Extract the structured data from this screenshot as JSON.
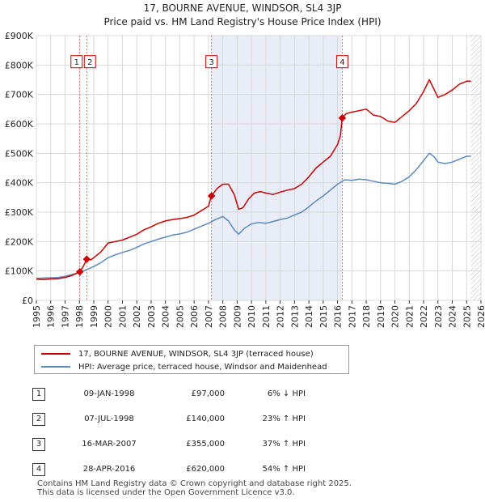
{
  "chart_data": {
    "type": "line",
    "title": "17, BOURNE AVENUE, WINDSOR, SL4 3JP",
    "subtitle": "Price paid vs. HM Land Registry's House Price Index (HPI)",
    "x_range": [
      1995,
      2026
    ],
    "ylim": [
      0,
      900000
    ],
    "y_ticks": [
      0,
      100000,
      200000,
      300000,
      400000,
      500000,
      600000,
      700000,
      800000,
      900000
    ],
    "y_tick_labels": [
      "£0",
      "£100K",
      "£200K",
      "£300K",
      "£400K",
      "£500K",
      "£600K",
      "£700K",
      "£800K",
      "£900K"
    ],
    "x_ticks": [
      "1995",
      "1996",
      "1997",
      "1998",
      "1999",
      "2000",
      "2001",
      "2002",
      "2003",
      "2004",
      "2005",
      "2006",
      "2007",
      "2008",
      "2009",
      "2010",
      "2011",
      "2012",
      "2013",
      "2014",
      "2015",
      "2016",
      "2017",
      "2018",
      "2019",
      "2020",
      "2021",
      "2022",
      "2023",
      "2024",
      "2025",
      "2026"
    ],
    "grid": true,
    "shaded_spans": [
      [
        2007.21,
        2016.33
      ]
    ],
    "hatched_from": 2025.3,
    "series": [
      {
        "name": "17, BOURNE AVENUE, WINDSOR, SL4 3JP (terraced house)",
        "color": "#cc0000",
        "x": [
          1995.0,
          1995.5,
          1996.0,
          1996.5,
          1997.0,
          1997.5,
          1997.9,
          1998.03,
          1998.3,
          1998.51,
          1998.8,
          1999.0,
          1999.5,
          2000.0,
          2000.5,
          2001.0,
          2001.5,
          2002.0,
          2002.5,
          2003.0,
          2003.5,
          2004.0,
          2004.5,
          2005.0,
          2005.5,
          2006.0,
          2006.5,
          2007.0,
          2007.21,
          2007.6,
          2008.0,
          2008.4,
          2008.8,
          2009.1,
          2009.4,
          2009.8,
          2010.2,
          2010.6,
          2011.0,
          2011.5,
          2012.0,
          2012.5,
          2013.0,
          2013.5,
          2014.0,
          2014.5,
          2015.0,
          2015.5,
          2016.0,
          2016.2,
          2016.33,
          2016.6,
          2017.0,
          2017.5,
          2018.0,
          2018.5,
          2019.0,
          2019.5,
          2020.0,
          2020.5,
          2021.0,
          2021.5,
          2022.0,
          2022.4,
          2022.7,
          2023.0,
          2023.5,
          2024.0,
          2024.5,
          2025.0,
          2025.3
        ],
        "values": [
          72000,
          71000,
          73000,
          74000,
          78000,
          85000,
          94000,
          97000,
          118000,
          140000,
          138000,
          145000,
          165000,
          195000,
          200000,
          205000,
          215000,
          225000,
          240000,
          250000,
          262000,
          270000,
          275000,
          278000,
          282000,
          290000,
          305000,
          320000,
          355000,
          380000,
          395000,
          395000,
          360000,
          310000,
          315000,
          345000,
          365000,
          370000,
          365000,
          360000,
          368000,
          375000,
          380000,
          395000,
          420000,
          450000,
          470000,
          490000,
          530000,
          560000,
          620000,
          635000,
          640000,
          645000,
          650000,
          630000,
          625000,
          610000,
          605000,
          625000,
          645000,
          670000,
          710000,
          750000,
          720000,
          690000,
          700000,
          715000,
          735000,
          745000,
          745000
        ]
      },
      {
        "name": "HPI: Average price, terraced house, Windsor and Maidenhead",
        "color": "#5b8ac0",
        "x": [
          1995.0,
          1995.5,
          1996.0,
          1996.5,
          1997.0,
          1997.5,
          1998.0,
          1998.5,
          1999.0,
          1999.5,
          2000.0,
          2000.5,
          2001.0,
          2001.5,
          2002.0,
          2002.5,
          2003.0,
          2003.5,
          2004.0,
          2004.5,
          2005.0,
          2005.5,
          2006.0,
          2006.5,
          2007.0,
          2007.5,
          2008.0,
          2008.4,
          2008.8,
          2009.1,
          2009.5,
          2010.0,
          2010.5,
          2011.0,
          2011.5,
          2012.0,
          2012.5,
          2013.0,
          2013.5,
          2014.0,
          2014.5,
          2015.0,
          2015.5,
          2016.0,
          2016.5,
          2017.0,
          2017.5,
          2018.0,
          2018.5,
          2019.0,
          2019.5,
          2020.0,
          2020.5,
          2021.0,
          2021.5,
          2022.0,
          2022.4,
          2022.7,
          2023.0,
          2023.5,
          2024.0,
          2024.5,
          2025.0,
          2025.3
        ],
        "values": [
          75000,
          76000,
          77000,
          78000,
          82000,
          88000,
          95000,
          105000,
          115000,
          128000,
          145000,
          155000,
          163000,
          170000,
          180000,
          192000,
          200000,
          208000,
          215000,
          222000,
          226000,
          232000,
          242000,
          252000,
          262000,
          275000,
          285000,
          270000,
          240000,
          225000,
          245000,
          260000,
          265000,
          262000,
          268000,
          275000,
          280000,
          290000,
          300000,
          318000,
          338000,
          355000,
          375000,
          395000,
          410000,
          408000,
          412000,
          410000,
          405000,
          400000,
          398000,
          395000,
          405000,
          420000,
          445000,
          475000,
          500000,
          490000,
          470000,
          465000,
          470000,
          480000,
          490000,
          490000
        ]
      }
    ],
    "sale_markers": [
      {
        "label": "1",
        "x": 1998.03,
        "value": 97000
      },
      {
        "label": "2",
        "x": 1998.51,
        "value": 140000
      },
      {
        "label": "3",
        "x": 2007.21,
        "value": 355000
      },
      {
        "label": "4",
        "x": 2016.33,
        "value": 620000
      }
    ]
  },
  "legend": {
    "property_label": "17, BOURNE AVENUE, WINDSOR, SL4 3JP (terraced house)",
    "hpi_label": "HPI: Average price, terraced house, Windsor and Maidenhead"
  },
  "sales": [
    {
      "index": "1",
      "date": "09-JAN-1998",
      "price": "£97,000",
      "hpi": "6% ↓ HPI"
    },
    {
      "index": "2",
      "date": "07-JUL-1998",
      "price": "£140,000",
      "hpi": "23% ↑ HPI"
    },
    {
      "index": "3",
      "date": "16-MAR-2007",
      "price": "£355,000",
      "hpi": "37% ↑ HPI"
    },
    {
      "index": "4",
      "date": "28-APR-2016",
      "price": "£620,000",
      "hpi": "54% ↑ HPI"
    }
  ],
  "footer": {
    "line1": "Contains HM Land Registry data © Crown copyright and database right 2025.",
    "line2": "This data is licensed under the Open Government Licence v3.0."
  }
}
